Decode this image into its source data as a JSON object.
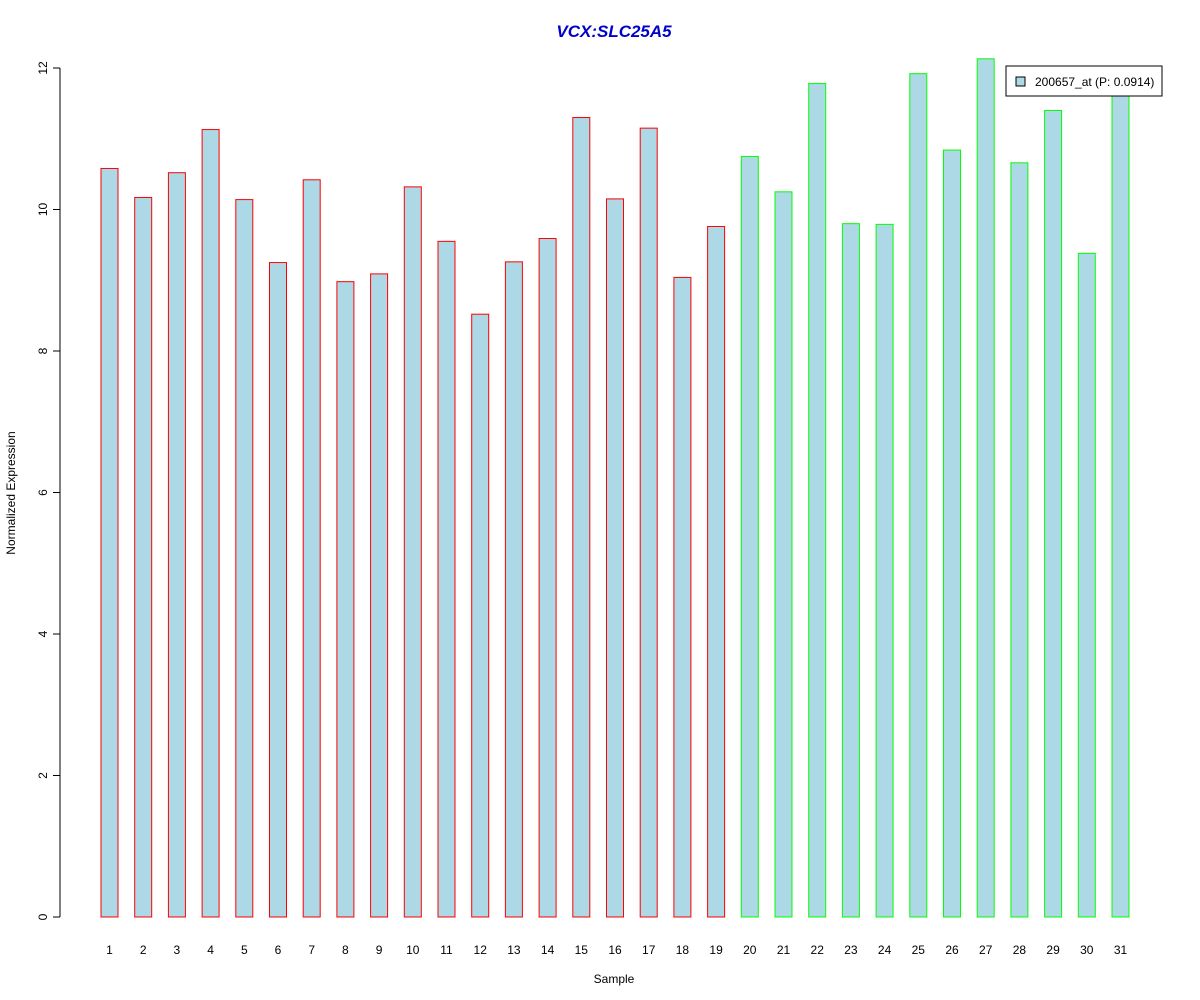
{
  "chart_data": {
    "type": "bar",
    "title": "VCX:SLC25A5",
    "xlabel": "Sample",
    "ylabel": "Normalized Expression",
    "ylim": [
      0,
      12
    ],
    "yticks": [
      0,
      2,
      4,
      6,
      8,
      10,
      12
    ],
    "categories": [
      "1",
      "2",
      "3",
      "4",
      "5",
      "6",
      "7",
      "8",
      "9",
      "10",
      "11",
      "12",
      "13",
      "14",
      "15",
      "16",
      "17",
      "18",
      "19",
      "20",
      "21",
      "22",
      "23",
      "24",
      "25",
      "26",
      "27",
      "28",
      "29",
      "30",
      "31"
    ],
    "series": [
      {
        "name": "200657_at (P: 0.0914)",
        "values": [
          10.58,
          10.17,
          10.52,
          11.13,
          10.14,
          9.25,
          10.42,
          8.98,
          9.09,
          10.32,
          9.55,
          8.52,
          9.26,
          9.59,
          11.3,
          10.15,
          11.15,
          9.04,
          9.76,
          10.75,
          10.25,
          11.78,
          9.8,
          9.79,
          11.92,
          10.84,
          12.13,
          10.66,
          11.4,
          9.38,
          11.75
        ]
      }
    ],
    "bar_fill": "#ADD8E6",
    "group_colors": [
      "#FF0000",
      "#00FF00"
    ],
    "group_assignment": [
      0,
      0,
      0,
      0,
      0,
      0,
      0,
      0,
      0,
      0,
      0,
      0,
      0,
      0,
      0,
      0,
      0,
      0,
      0,
      1,
      1,
      1,
      1,
      1,
      1,
      1,
      1,
      1,
      1,
      1,
      1
    ],
    "title_color": "#0000CC",
    "grid": false,
    "legend_position": "top-right"
  }
}
